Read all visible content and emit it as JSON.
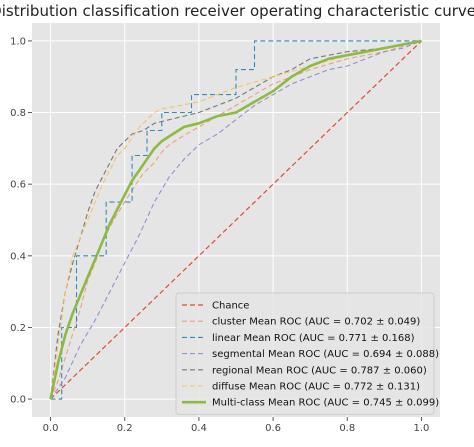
{
  "chart_data": {
    "type": "line",
    "title": "Distribution classification receiver operating characteristic curves",
    "xlabel": "",
    "ylabel": "",
    "xlim": [
      -0.05,
      1.05
    ],
    "ylim": [
      -0.05,
      1.05
    ],
    "x_ticks": [
      "0.0",
      "0.2",
      "0.4",
      "0.6",
      "0.8",
      "1.0"
    ],
    "y_ticks": [
      "0.0",
      "0.2",
      "0.4",
      "0.6",
      "0.8",
      "1.0"
    ],
    "grid": true,
    "legend_position": "lower-right",
    "series": [
      {
        "name": "Chance",
        "color": "#e24a33",
        "dash": true,
        "width": 1.2,
        "x": [
          0,
          1
        ],
        "y": [
          0,
          1
        ]
      },
      {
        "name": "cluster Mean ROC (AUC = 0.702 ± 0.049)",
        "color": "#ec9e8a",
        "dash": true,
        "width": 1.1,
        "x": [
          0,
          0.02,
          0.05,
          0.08,
          0.1,
          0.12,
          0.14,
          0.17,
          0.2,
          0.23,
          0.25,
          0.28,
          0.3,
          0.32,
          0.35,
          0.4,
          0.45,
          0.5,
          0.55,
          0.6,
          0.7,
          0.8,
          0.9,
          1.0
        ],
        "y": [
          0,
          0.05,
          0.15,
          0.25,
          0.33,
          0.38,
          0.44,
          0.5,
          0.55,
          0.6,
          0.63,
          0.66,
          0.69,
          0.71,
          0.73,
          0.76,
          0.79,
          0.82,
          0.85,
          0.88,
          0.92,
          0.95,
          0.97,
          1.0
        ]
      },
      {
        "name": "linear Mean ROC (AUC = 0.771 ± 0.168)",
        "color": "#348abd",
        "dash": true,
        "width": 1.1,
        "x": [
          0,
          0.03,
          0.03,
          0.07,
          0.07,
          0.15,
          0.15,
          0.22,
          0.22,
          0.26,
          0.26,
          0.3,
          0.3,
          0.38,
          0.38,
          0.5,
          0.5,
          0.55,
          0.55,
          1.0
        ],
        "y": [
          0,
          0,
          0.2,
          0.2,
          0.4,
          0.4,
          0.55,
          0.55,
          0.68,
          0.68,
          0.75,
          0.75,
          0.8,
          0.8,
          0.85,
          0.85,
          0.92,
          0.92,
          1.0,
          1.0
        ]
      },
      {
        "name": "segmental Mean ROC (AUC = 0.694 ± 0.088)",
        "color": "#988ed5",
        "dash": true,
        "width": 1.1,
        "x": [
          0,
          0.04,
          0.08,
          0.12,
          0.16,
          0.2,
          0.24,
          0.28,
          0.32,
          0.36,
          0.4,
          0.45,
          0.5,
          0.55,
          0.6,
          0.65,
          0.7,
          0.75,
          0.8,
          0.85,
          0.9,
          0.95,
          1.0
        ],
        "y": [
          0,
          0.06,
          0.15,
          0.22,
          0.3,
          0.38,
          0.46,
          0.55,
          0.62,
          0.67,
          0.71,
          0.74,
          0.78,
          0.82,
          0.85,
          0.88,
          0.9,
          0.92,
          0.93,
          0.95,
          0.97,
          0.98,
          1.0
        ]
      },
      {
        "name": "regional Mean ROC (AUC = 0.787 ± 0.060)",
        "color": "#777777",
        "dash": true,
        "width": 1.1,
        "x": [
          0,
          0.02,
          0.04,
          0.06,
          0.08,
          0.1,
          0.12,
          0.14,
          0.16,
          0.18,
          0.2,
          0.22,
          0.25,
          0.28,
          0.32,
          0.36,
          0.4,
          0.45,
          0.5,
          0.55,
          0.6,
          0.65,
          0.7,
          0.8,
          0.9,
          1.0
        ],
        "y": [
          0,
          0.18,
          0.3,
          0.38,
          0.45,
          0.52,
          0.58,
          0.62,
          0.66,
          0.7,
          0.72,
          0.74,
          0.75,
          0.77,
          0.78,
          0.79,
          0.8,
          0.82,
          0.84,
          0.87,
          0.9,
          0.92,
          0.95,
          0.97,
          0.98,
          1.0
        ]
      },
      {
        "name": "diffuse Mean ROC (AUC = 0.772 ± 0.131)",
        "color": "#fbc15e",
        "dash": true,
        "width": 1.1,
        "x": [
          0,
          0.02,
          0.04,
          0.06,
          0.08,
          0.1,
          0.12,
          0.14,
          0.16,
          0.18,
          0.2,
          0.22,
          0.24,
          0.26,
          0.28,
          0.3,
          0.35,
          0.4,
          0.45,
          0.5,
          0.6,
          0.7,
          0.8,
          0.9,
          1.0
        ],
        "y": [
          0,
          0.15,
          0.3,
          0.4,
          0.45,
          0.5,
          0.55,
          0.6,
          0.64,
          0.68,
          0.7,
          0.73,
          0.76,
          0.78,
          0.8,
          0.81,
          0.82,
          0.83,
          0.85,
          0.87,
          0.9,
          0.93,
          0.96,
          0.98,
          1.0
        ]
      },
      {
        "name": "Multi-class Mean ROC (AUC = 0.745 ± 0.099)",
        "color": "#8eba42",
        "dash": false,
        "width": 2.6,
        "x": [
          0,
          0.02,
          0.04,
          0.06,
          0.08,
          0.1,
          0.12,
          0.14,
          0.16,
          0.18,
          0.2,
          0.22,
          0.24,
          0.26,
          0.28,
          0.3,
          0.33,
          0.36,
          0.4,
          0.45,
          0.5,
          0.55,
          0.6,
          0.65,
          0.7,
          0.75,
          0.8,
          0.85,
          0.9,
          0.95,
          1.0
        ],
        "y": [
          0,
          0.1,
          0.18,
          0.24,
          0.29,
          0.34,
          0.39,
          0.44,
          0.49,
          0.53,
          0.57,
          0.61,
          0.64,
          0.67,
          0.7,
          0.72,
          0.74,
          0.76,
          0.77,
          0.79,
          0.8,
          0.83,
          0.86,
          0.9,
          0.93,
          0.95,
          0.96,
          0.97,
          0.98,
          0.99,
          1.0
        ]
      }
    ]
  }
}
